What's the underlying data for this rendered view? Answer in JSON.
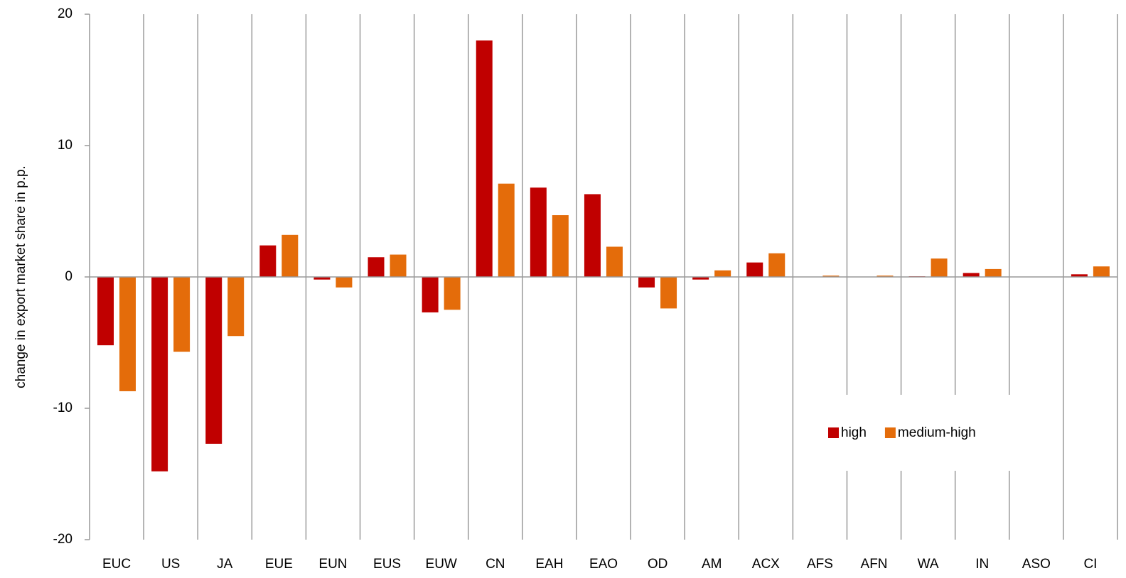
{
  "chart_data": {
    "type": "bar",
    "y_label": "change in export market share in p.p.",
    "categories": [
      "EUC",
      "US",
      "JA",
      "EUE",
      "EUN",
      "EUS",
      "EUW",
      "CN",
      "EAH",
      "EAO",
      "OD",
      "AM",
      "ACX",
      "AFS",
      "AFN",
      "WA",
      "IN",
      "ASO",
      "CI"
    ],
    "series": [
      {
        "name": "high",
        "color": "#c00000",
        "values": [
          -5.2,
          -14.8,
          -12.7,
          2.4,
          -0.2,
          1.5,
          -2.7,
          18.0,
          6.8,
          6.3,
          -0.8,
          -0.2,
          1.1,
          0,
          0,
          0.05,
          0.3,
          0,
          0.2
        ]
      },
      {
        "name": "medium-high",
        "color": "#e46c0a",
        "values": [
          -8.7,
          -5.7,
          -4.5,
          3.2,
          -0.8,
          1.7,
          -2.5,
          7.1,
          4.7,
          2.3,
          -2.4,
          0.5,
          1.8,
          0.1,
          0.1,
          1.4,
          0.6,
          0,
          0.8
        ]
      }
    ],
    "ylim": [
      -20,
      20
    ],
    "yticks": [
      -20,
      -10,
      0,
      10,
      20
    ]
  }
}
